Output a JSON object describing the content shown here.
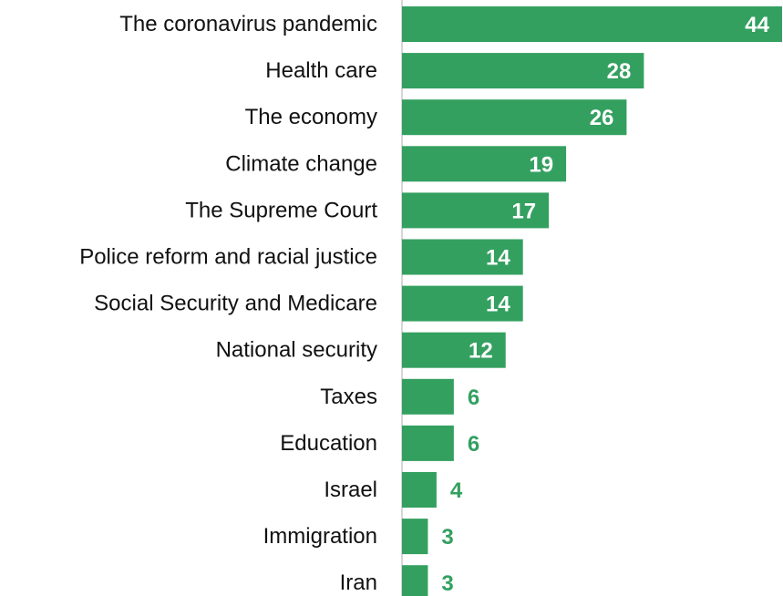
{
  "chart_data": {
    "type": "bar",
    "orientation": "horizontal",
    "categories": [
      "The coronavirus pandemic",
      "Health care",
      "The economy",
      "Climate change",
      "The Supreme Court",
      "Police reform and racial justice",
      "Social Security and Medicare",
      "National security",
      "Taxes",
      "Education",
      "Israel",
      "Immigration",
      "Iran"
    ],
    "values": [
      44,
      28,
      26,
      19,
      17,
      14,
      14,
      12,
      6,
      6,
      4,
      3,
      3
    ],
    "xlim": [
      0,
      44
    ],
    "grid": false,
    "legend": "none",
    "bar_color": "#34a060",
    "label_inside_color": "#ffffff",
    "label_outside_color": "#34a060",
    "axis_color": "#c8c8c8"
  }
}
